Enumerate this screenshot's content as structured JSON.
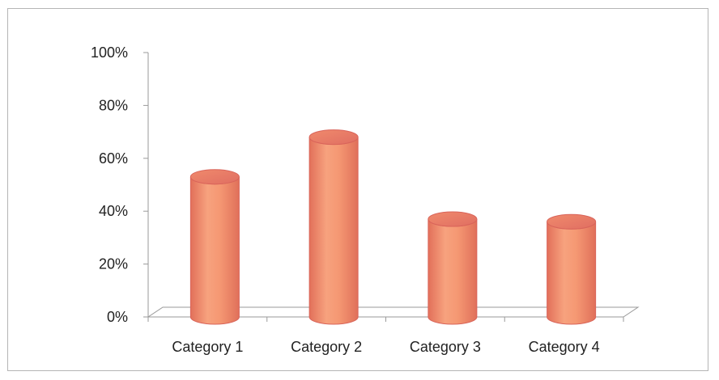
{
  "chart_data": {
    "type": "bar",
    "style": "3d-cylinder",
    "categories": [
      "Category 1",
      "Category 2",
      "Category 3",
      "Category 4"
    ],
    "series": [
      {
        "values": [
          0.53,
          0.68,
          0.37,
          0.36
        ]
      }
    ],
    "ylim": [
      0,
      1
    ],
    "yticks": [
      0,
      0.2,
      0.4,
      0.6,
      0.8,
      1.0
    ],
    "ytick_labels": [
      "0%",
      "20%",
      "40%",
      "60%",
      "80%",
      "100%"
    ],
    "title": "",
    "xlabel": "",
    "ylabel": "",
    "grid": false,
    "legend": "none",
    "bar_color": "#f0906a",
    "bar_edge_color": "#d9645a"
  }
}
